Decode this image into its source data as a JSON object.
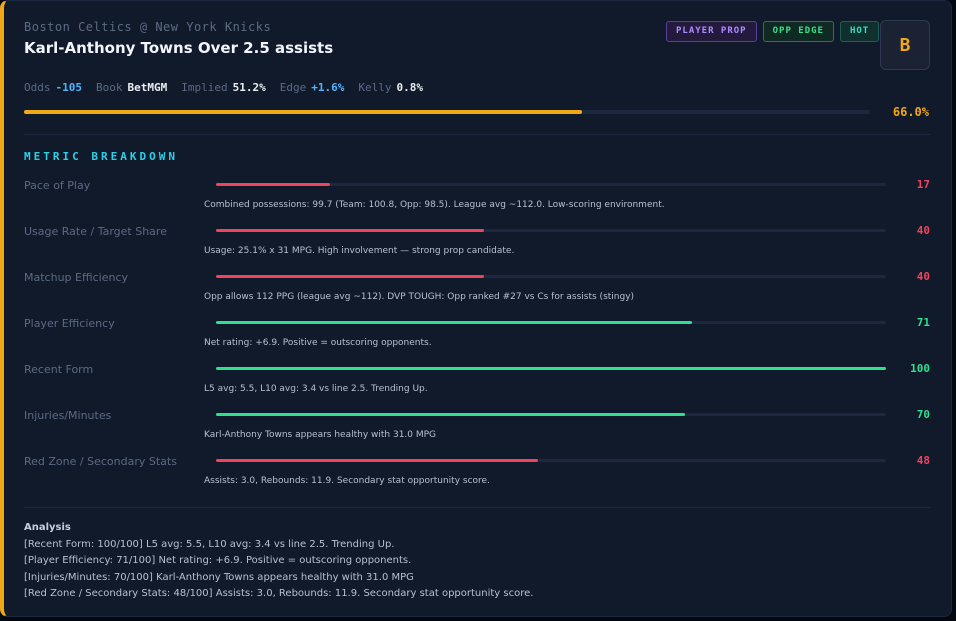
{
  "header": {
    "matchup": "Boston Celtics @ New York Knicks",
    "title": "Karl-Anthony Towns Over 2.5 assists",
    "badges": {
      "prop": "PLAYER PROP",
      "edge": "OPP EDGE",
      "hot": "HOT"
    },
    "grade": "B"
  },
  "stats": {
    "odds_label": "Odds",
    "odds_value": "-105",
    "book_label": "Book",
    "book_value": "BetMGM",
    "implied_label": "Implied",
    "implied_value": "51.2%",
    "edge_label": "Edge",
    "edge_value": "+1.6%",
    "kelly_label": "Kelly",
    "kelly_value": "0.8%"
  },
  "confidence": {
    "value": 66.0,
    "label": "66.0%"
  },
  "breakdown": {
    "title": "METRIC BREAKDOWN",
    "metrics": [
      {
        "label": "Pace of Play",
        "score": 17,
        "score_label": "17",
        "level": "low",
        "detail": "Combined possessions: 99.7 (Team: 100.8, Opp: 98.5). League avg ~112.0. Low-scoring environment."
      },
      {
        "label": "Usage Rate / Target Share",
        "score": 40,
        "score_label": "40",
        "level": "low",
        "detail": "Usage: 25.1% x 31 MPG. High involvement — strong prop candidate."
      },
      {
        "label": "Matchup Efficiency",
        "score": 40,
        "score_label": "40",
        "level": "low",
        "detail": "Opp allows 112 PPG (league avg ~112). DVP TOUGH: Opp ranked #27 vs Cs for assists (stingy)"
      },
      {
        "label": "Player Efficiency",
        "score": 71,
        "score_label": "71",
        "level": "high",
        "detail": "Net rating: +6.9. Positive = outscoring opponents."
      },
      {
        "label": "Recent Form",
        "score": 100,
        "score_label": "100",
        "level": "high",
        "detail": "L5 avg: 5.5, L10 avg: 3.4 vs line 2.5. Trending Up."
      },
      {
        "label": "Injuries/Minutes",
        "score": 70,
        "score_label": "70",
        "level": "high",
        "detail": "Karl-Anthony Towns appears healthy with 31.0 MPG"
      },
      {
        "label": "Red Zone / Secondary Stats",
        "score": 48,
        "score_label": "48",
        "level": "low",
        "detail": "Assists: 3.0, Rebounds: 11.9. Secondary stat opportunity score."
      }
    ]
  },
  "analysis": {
    "title": "Analysis",
    "lines": [
      "[Recent Form: 100/100] L5 avg: 5.5, L10 avg: 3.4 vs line 2.5. Trending Up.",
      "[Player Efficiency: 71/100] Net rating: +6.9. Positive = outscoring opponents.",
      "[Injuries/Minutes: 70/100] Karl-Anthony Towns appears healthy with 31.0 MPG",
      "[Red Zone / Secondary Stats: 48/100] Assists: 3.0, Rebounds: 11.9. Secondary stat opportunity score."
    ]
  },
  "colors": {
    "accent": "#f0a818",
    "low": "#f0435c",
    "high": "#2fe08c",
    "cyan": "#2bd0e8",
    "blue": "#4fb4ff"
  }
}
